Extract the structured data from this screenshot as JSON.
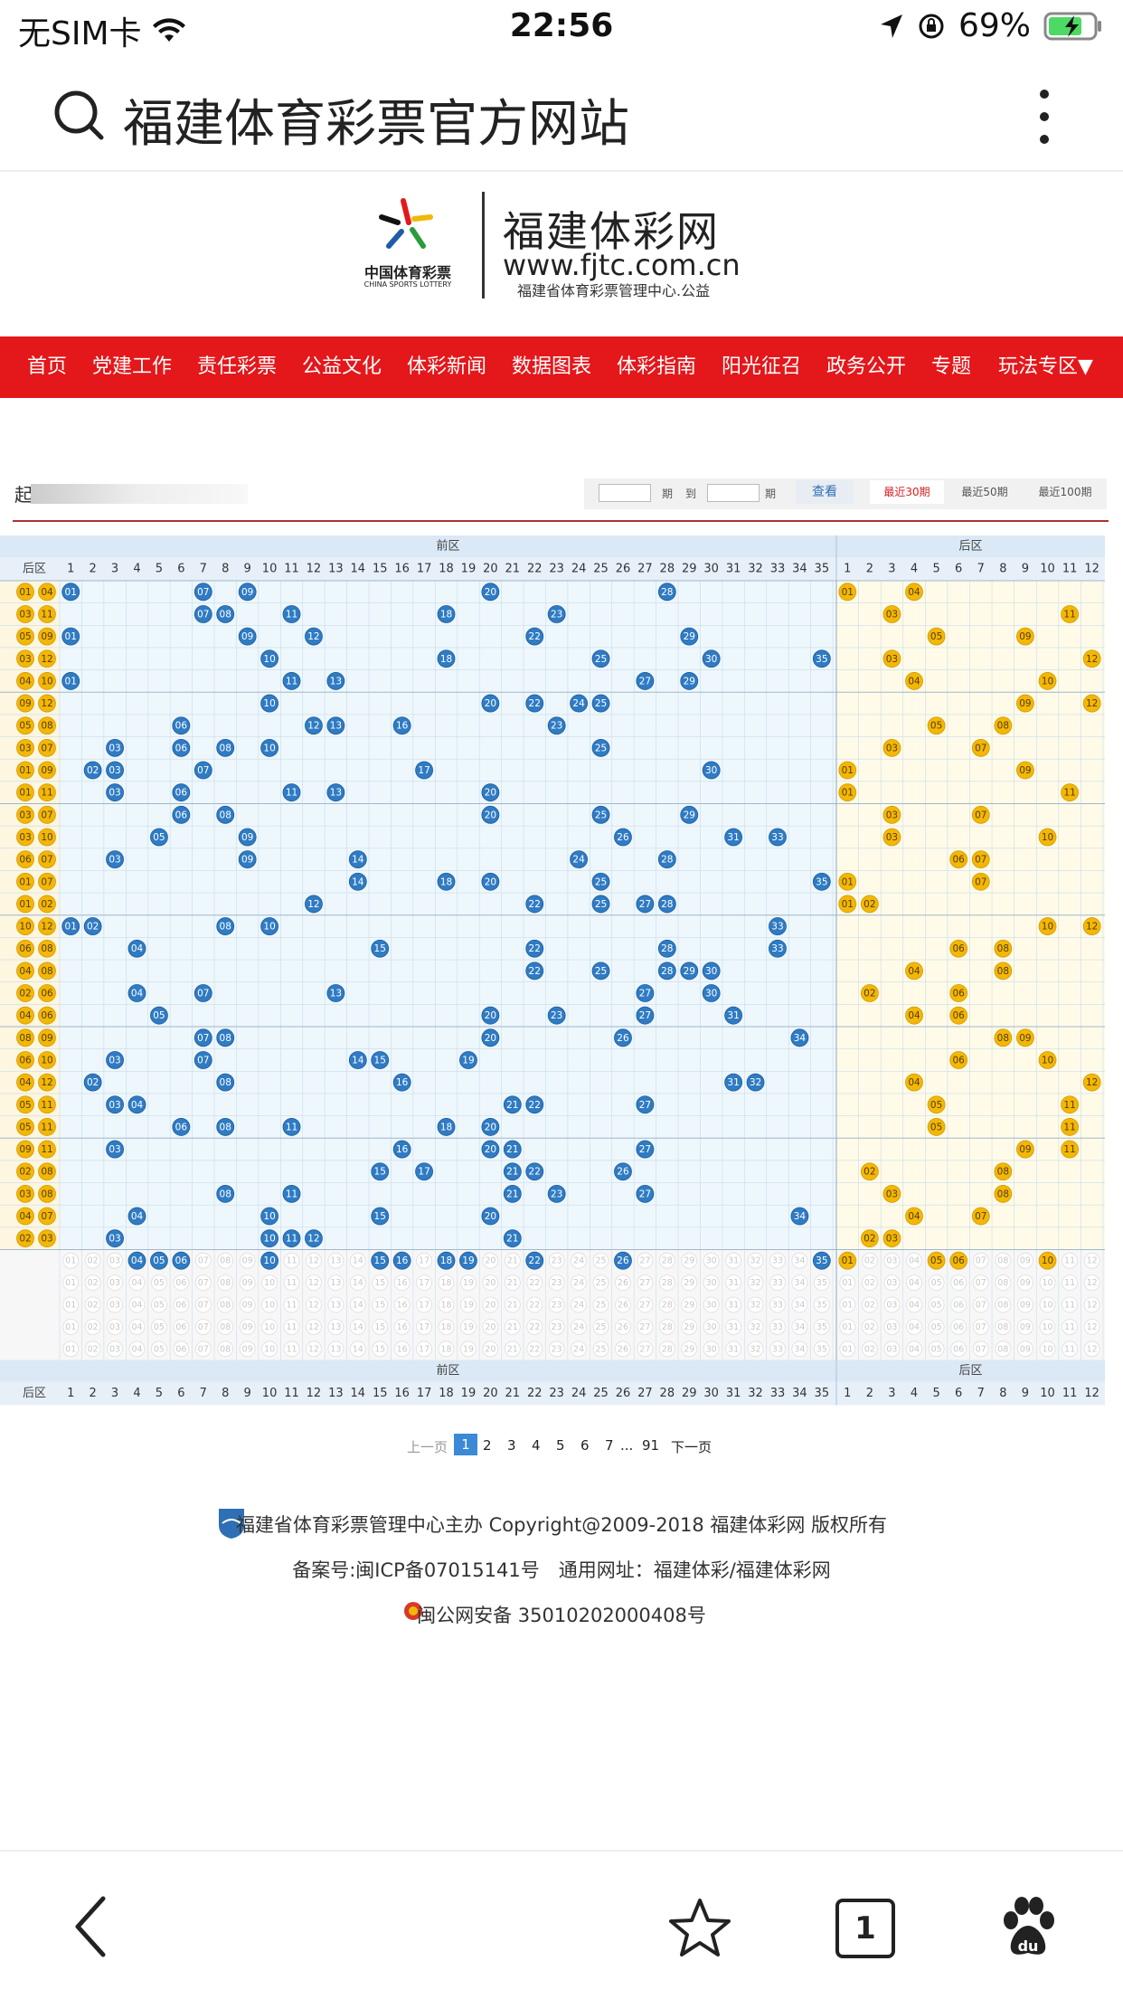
{
  "status_bar": {
    "carrier": "无SIM卡",
    "time": "22:56",
    "battery": "69%"
  },
  "browser": {
    "search_text": "福建体育彩票官方网站"
  },
  "site": {
    "logo_cn": "中国体育彩票",
    "logo_en": "CHINA SPORTS LOTTERY",
    "name": "福建体彩网",
    "domain": "www.fjtc.com.cn",
    "tagline": "福建省体育彩票管理中心.公益"
  },
  "nav": [
    "首页",
    "党建工作",
    "责任彩票",
    "公益文化",
    "体彩新闻",
    "数据图表",
    "体彩指南",
    "阳光征召",
    "政务公开",
    "专题",
    "玩法专区▼"
  ],
  "filter": {
    "label": "起",
    "to": "到",
    "period": "期",
    "view_button": "查看",
    "recent30": "最近30期",
    "recent50": "最近50期",
    "recent100": "最近100期"
  },
  "chart_data": {
    "type": "table",
    "front_header": "前区",
    "back_header": "后区",
    "back_col_label": "后区",
    "front_max": 35,
    "back_max": 12,
    "visible_back_pairs": [
      [
        "01",
        "04"
      ],
      [
        "03",
        "11"
      ],
      [
        "05",
        "09"
      ],
      [
        "03",
        "12"
      ],
      [
        "04",
        "10"
      ],
      [
        "09",
        "12"
      ],
      [
        "05",
        "08"
      ],
      [
        "03",
        "07"
      ],
      [
        "01",
        "09"
      ],
      [
        "01",
        "11"
      ],
      [
        "03",
        "07"
      ],
      [
        "03",
        "10"
      ],
      [
        "06",
        "07"
      ],
      [
        "01",
        "07"
      ],
      [
        "01",
        "02"
      ],
      [
        "10",
        "12"
      ],
      [
        "06",
        "08"
      ],
      [
        "04",
        "08"
      ],
      [
        "02",
        "06"
      ],
      [
        "04",
        "06"
      ],
      [
        "08",
        "09"
      ],
      [
        "06",
        "10"
      ],
      [
        "04",
        "12"
      ],
      [
        "05",
        "11"
      ],
      [
        "05",
        "11"
      ],
      [
        "09",
        "11"
      ],
      [
        "02",
        "08"
      ],
      [
        "03",
        "08"
      ],
      [
        "04",
        "07"
      ],
      [
        "02",
        "03"
      ]
    ],
    "draws": [
      {
        "front": [
          1,
          7,
          9,
          20,
          28
        ],
        "back": [
          1,
          4
        ]
      },
      {
        "front": [
          7,
          8,
          11,
          18,
          23
        ],
        "back": [
          3,
          11
        ]
      },
      {
        "front": [
          1,
          9,
          12,
          22,
          29
        ],
        "back": [
          5,
          9
        ]
      },
      {
        "front": [
          10,
          18,
          25,
          30,
          35
        ],
        "back": [
          3,
          12
        ]
      },
      {
        "front": [
          1,
          11,
          13,
          27,
          29
        ],
        "back": [
          4,
          10
        ]
      },
      {
        "front": [
          10,
          20,
          22,
          24,
          25
        ],
        "back": [
          9,
          12
        ]
      },
      {
        "front": [
          6,
          12,
          13,
          16,
          23
        ],
        "back": [
          5,
          8
        ]
      },
      {
        "front": [
          3,
          6,
          8,
          10,
          25
        ],
        "back": [
          3,
          7
        ]
      },
      {
        "front": [
          2,
          3,
          7,
          17,
          30
        ],
        "back": [
          1,
          9
        ]
      },
      {
        "front": [
          3,
          6,
          11,
          13,
          20
        ],
        "back": [
          1,
          11
        ]
      },
      {
        "front": [
          6,
          8,
          20,
          25,
          29
        ],
        "back": [
          3,
          7
        ]
      },
      {
        "front": [
          5,
          9,
          26,
          31,
          33
        ],
        "back": [
          3,
          10
        ]
      },
      {
        "front": [
          3,
          9,
          14,
          24,
          28
        ],
        "back": [
          6,
          7
        ]
      },
      {
        "front": [
          14,
          18,
          20,
          25,
          35
        ],
        "back": [
          1,
          7
        ]
      },
      {
        "front": [
          12,
          22,
          25,
          27,
          28
        ],
        "back": [
          1,
          2
        ]
      },
      {
        "front": [
          1,
          2,
          8,
          10,
          33
        ],
        "back": [
          10,
          12
        ]
      },
      {
        "front": [
          4,
          15,
          22,
          28,
          33
        ],
        "back": [
          6,
          8
        ]
      },
      {
        "front": [
          22,
          25,
          28,
          29,
          30
        ],
        "back": [
          4,
          8
        ]
      },
      {
        "front": [
          4,
          7,
          13,
          27,
          30
        ],
        "back": [
          2,
          6
        ]
      },
      {
        "front": [
          5,
          20,
          23,
          27,
          31
        ],
        "back": [
          4,
          6
        ]
      },
      {
        "front": [
          7,
          8,
          20,
          26,
          34
        ],
        "back": [
          8,
          9
        ]
      },
      {
        "front": [
          3,
          7,
          14,
          15,
          19
        ],
        "back": [
          6,
          10
        ]
      },
      {
        "front": [
          2,
          8,
          16,
          31,
          32
        ],
        "back": [
          4,
          12
        ]
      },
      {
        "front": [
          3,
          4,
          21,
          22,
          27
        ],
        "back": [
          5,
          11
        ]
      },
      {
        "front": [
          6,
          8,
          11,
          18,
          20
        ],
        "back": [
          5,
          11
        ]
      },
      {
        "front": [
          3,
          16,
          20,
          21,
          27
        ],
        "back": [
          9,
          11
        ]
      },
      {
        "front": [
          15,
          17,
          21,
          22,
          26
        ],
        "back": [
          2,
          8
        ]
      },
      {
        "front": [
          8,
          11,
          21,
          23,
          27
        ],
        "back": [
          3,
          8
        ]
      },
      {
        "front": [
          4,
          10,
          15,
          20,
          34
        ],
        "back": [
          4,
          7
        ]
      },
      {
        "front": [
          3,
          10,
          11,
          12,
          21
        ],
        "back": [
          2,
          3
        ]
      }
    ],
    "stat_row": {
      "front": [
        4,
        5,
        6,
        10,
        15,
        16,
        18,
        19,
        22,
        26,
        35
      ],
      "back": [
        1,
        5,
        6,
        10
      ]
    }
  },
  "pagination": {
    "prev": "上一页",
    "pages": [
      "1",
      "2",
      "3",
      "4",
      "5",
      "6",
      "7"
    ],
    "ellipsis": "...",
    "last": "91",
    "next": "下一页",
    "current": "1"
  },
  "footer": {
    "line1": "福建省体育彩票管理中心主办 Copyright@2009-2018 福建体彩网 版权所有",
    "line2": "备案号:闽ICP备07015141号　通用网址：福建体彩/福建体彩网",
    "line3": "闽公网安备 35010202000408号"
  },
  "bottom_bar": {
    "tabs": "1"
  },
  "colors": {
    "nav_red": "#e4171b",
    "front_ball": "#2f7bc4",
    "back_ball": "#f2b707",
    "front_bg": "#eef7fc",
    "back_bg": "#fffbe8"
  }
}
